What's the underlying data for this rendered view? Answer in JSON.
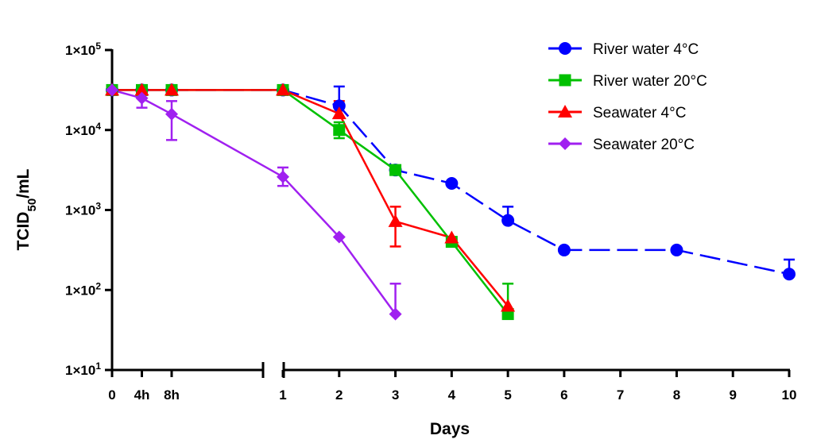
{
  "chart_data": {
    "type": "line",
    "xlabel": "Days",
    "ylabel_main": "TCID",
    "ylabel_sub": "50",
    "ylabel_rest": "/mL",
    "y_scale": "log",
    "ylim": [
      10,
      100000
    ],
    "y_ticks": [
      {
        "value": 10,
        "base": "1×10",
        "exp": "1"
      },
      {
        "value": 100,
        "base": "1×10",
        "exp": "2"
      },
      {
        "value": 1000,
        "base": "1×10",
        "exp": "3"
      },
      {
        "value": 10000,
        "base": "1×10",
        "exp": "4"
      },
      {
        "value": 100000,
        "base": "1×10",
        "exp": "5"
      }
    ],
    "x_axis_segments": [
      {
        "name": "hours",
        "ticks": [
          {
            "value": 0,
            "label": "0"
          },
          {
            "value": 4,
            "label": "4h"
          },
          {
            "value": 8,
            "label": "8h"
          }
        ]
      },
      {
        "name": "days",
        "ticks": [
          {
            "value": 1,
            "label": "1"
          },
          {
            "value": 2,
            "label": "2"
          },
          {
            "value": 3,
            "label": "3"
          },
          {
            "value": 4,
            "label": "4"
          },
          {
            "value": 5,
            "label": "5"
          },
          {
            "value": 6,
            "label": "6"
          },
          {
            "value": 7,
            "label": "7"
          },
          {
            "value": 8,
            "label": "8"
          },
          {
            "value": 9,
            "label": "9"
          },
          {
            "value": 10,
            "label": "10"
          }
        ]
      }
    ],
    "legend_position": "top-right",
    "series": [
      {
        "name": "River water 4°C",
        "color": "#0000ff",
        "marker": "circle",
        "dash": "dash",
        "points": [
          {
            "segment": "hours",
            "x": 0,
            "y": 31600
          },
          {
            "segment": "hours",
            "x": 4,
            "y": 31600
          },
          {
            "segment": "hours",
            "x": 8,
            "y": 31600
          },
          {
            "segment": "days",
            "x": 1,
            "y": 31600
          },
          {
            "segment": "days",
            "x": 2,
            "y": 20000,
            "err_hi": 35000
          },
          {
            "segment": "days",
            "x": 3,
            "y": 3160
          },
          {
            "segment": "days",
            "x": 4,
            "y": 2150
          },
          {
            "segment": "days",
            "x": 5,
            "y": 740,
            "err_hi": 1100
          },
          {
            "segment": "days",
            "x": 6,
            "y": 316
          },
          {
            "segment": "days",
            "x": 8,
            "y": 316
          },
          {
            "segment": "days",
            "x": 10,
            "y": 158,
            "err_hi": 240
          }
        ]
      },
      {
        "name": "River water 20°C",
        "color": "#00c000",
        "marker": "square",
        "dash": "solid",
        "points": [
          {
            "segment": "hours",
            "x": 0,
            "y": 31600
          },
          {
            "segment": "hours",
            "x": 4,
            "y": 31600
          },
          {
            "segment": "hours",
            "x": 8,
            "y": 31600
          },
          {
            "segment": "days",
            "x": 1,
            "y": 31600
          },
          {
            "segment": "days",
            "x": 2,
            "y": 10000,
            "err_lo": 7900,
            "err_hi": 12500
          },
          {
            "segment": "days",
            "x": 3,
            "y": 3160
          },
          {
            "segment": "days",
            "x": 4,
            "y": 400
          },
          {
            "segment": "days",
            "x": 5,
            "y": 50,
            "err_hi": 120
          }
        ]
      },
      {
        "name": "Seawater 4°C",
        "color": "#ff0000",
        "marker": "triangle",
        "dash": "solid",
        "points": [
          {
            "segment": "hours",
            "x": 0,
            "y": 31600
          },
          {
            "segment": "hours",
            "x": 4,
            "y": 31600
          },
          {
            "segment": "hours",
            "x": 8,
            "y": 31600
          },
          {
            "segment": "days",
            "x": 1,
            "y": 31600
          },
          {
            "segment": "days",
            "x": 2,
            "y": 16000,
            "err_hi": 23000
          },
          {
            "segment": "days",
            "x": 3,
            "y": 720,
            "err_lo": 350,
            "err_hi": 1100
          },
          {
            "segment": "days",
            "x": 4,
            "y": 450
          },
          {
            "segment": "days",
            "x": 5,
            "y": 63
          }
        ]
      },
      {
        "name": "Seawater 20°C",
        "color": "#a020f0",
        "marker": "diamond",
        "dash": "solid",
        "points": [
          {
            "segment": "hours",
            "x": 0,
            "y": 31600
          },
          {
            "segment": "hours",
            "x": 4,
            "y": 25000,
            "err_lo": 19000,
            "err_hi": 31000
          },
          {
            "segment": "hours",
            "x": 8,
            "y": 15800,
            "err_lo": 7500,
            "err_hi": 23000
          },
          {
            "segment": "days",
            "x": 1,
            "y": 2600,
            "err_lo": 2000,
            "err_hi": 3400
          },
          {
            "segment": "days",
            "x": 2,
            "y": 460
          },
          {
            "segment": "days",
            "x": 3,
            "y": 50,
            "err_hi": 120
          }
        ]
      }
    ]
  }
}
